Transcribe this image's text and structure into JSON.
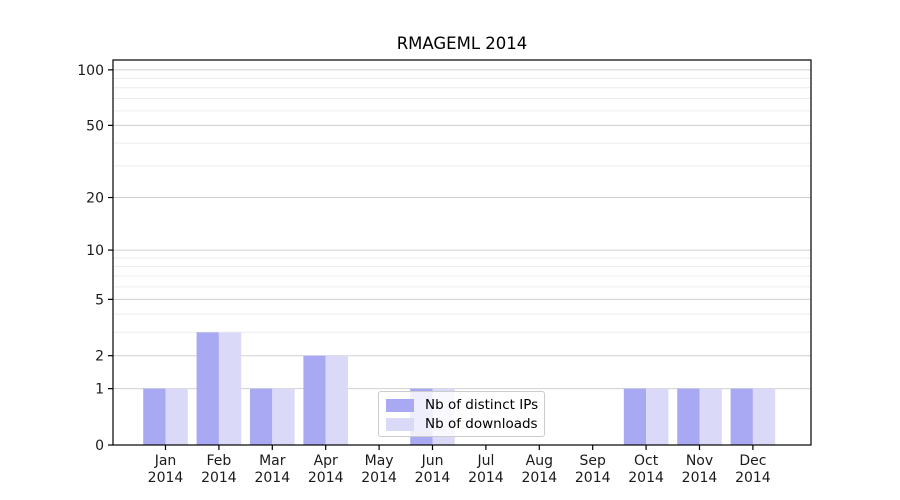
{
  "figure": {
    "background": "#ffffff"
  },
  "chart_data": {
    "type": "bar",
    "title": "RMAGEML 2014",
    "xlabel": "",
    "ylabel": "",
    "x_months": [
      "Jan",
      "Feb",
      "Mar",
      "Apr",
      "May",
      "Jun",
      "Jul",
      "Aug",
      "Sep",
      "Oct",
      "Nov",
      "Dec"
    ],
    "x_year": "2014",
    "series": [
      {
        "name": "Nb of distinct IPs",
        "color": "#a9a9f3",
        "values": [
          1,
          3,
          1,
          2,
          0,
          1,
          0,
          0,
          0,
          1,
          1,
          1
        ]
      },
      {
        "name": "Nb of downloads",
        "color": "#dadaf8",
        "values": [
          1,
          3,
          1,
          2,
          0,
          1,
          0,
          0,
          0,
          1,
          1,
          1
        ]
      }
    ],
    "y_scale": "log1p",
    "ylim": [
      0,
      113
    ],
    "y_major_ticks": [
      0,
      1,
      2,
      5,
      10,
      20,
      50,
      100
    ],
    "y_minor_gridlines": [
      3,
      4,
      6,
      7,
      8,
      9,
      30,
      40,
      60,
      70,
      80,
      90
    ],
    "grid": "on",
    "legend_position": "lower-center-inside"
  },
  "colors": {
    "grid_major": "#d0d0d0",
    "grid_minor": "#ececec",
    "axis_line": "#000000",
    "tick_text": "#1a1a1a"
  }
}
